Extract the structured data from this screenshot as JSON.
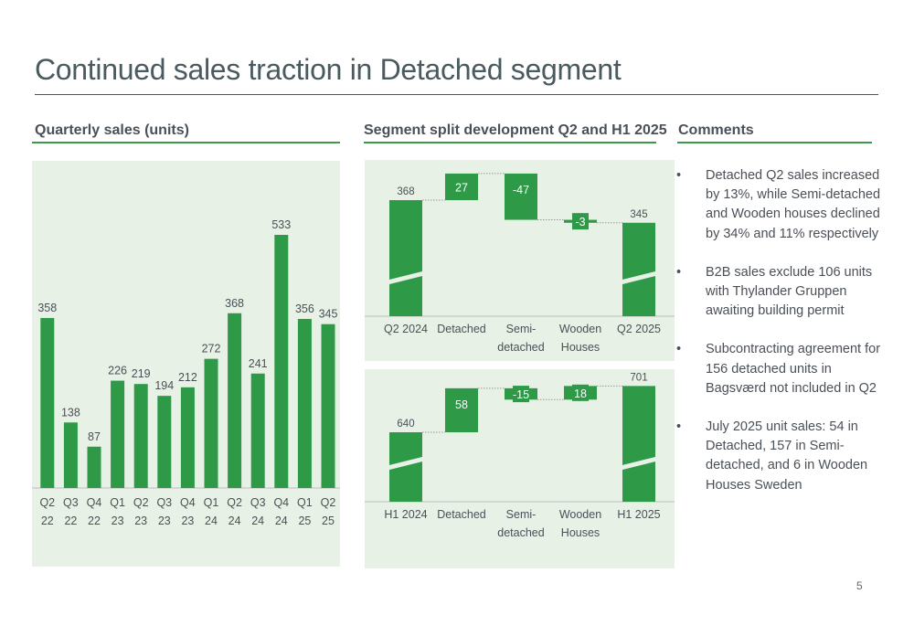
{
  "title": "Continued sales traction in Detached segment",
  "sections": {
    "quarterly": "Quarterly sales (units)",
    "segment": "Segment split development Q2 and H1 2025",
    "comments": "Comments"
  },
  "colors": {
    "bar": "#2e9a48",
    "panel": "#e8f1e6",
    "rule": "#3a9a48"
  },
  "chart_data": [
    {
      "type": "bar",
      "title": "Quarterly sales (units)",
      "categories": [
        [
          "Q2",
          "22"
        ],
        [
          "Q3",
          "22"
        ],
        [
          "Q4",
          "22"
        ],
        [
          "Q1",
          "23"
        ],
        [
          "Q2",
          "23"
        ],
        [
          "Q3",
          "23"
        ],
        [
          "Q4",
          "23"
        ],
        [
          "Q1",
          "24"
        ],
        [
          "Q2",
          "24"
        ],
        [
          "Q3",
          "24"
        ],
        [
          "Q4",
          "24"
        ],
        [
          "Q1",
          "25"
        ],
        [
          "Q2",
          "25"
        ]
      ],
      "values": [
        358,
        138,
        87,
        226,
        219,
        194,
        212,
        272,
        368,
        241,
        533,
        356,
        345
      ],
      "ylim": [
        0,
        560
      ]
    },
    {
      "type": "waterfall",
      "categories": [
        [
          "Q2 2024"
        ],
        [
          "Detached"
        ],
        [
          "Semi-",
          "detached"
        ],
        [
          "Wooden",
          "Houses"
        ],
        [
          "Q2 2025"
        ]
      ],
      "values": [
        368,
        27,
        -47,
        -3,
        345
      ],
      "labels": [
        "368",
        "27",
        "-47",
        "-3",
        "345"
      ],
      "kinds": [
        "total",
        "delta",
        "delta",
        "delta",
        "total"
      ],
      "axis_broken": true
    },
    {
      "type": "waterfall",
      "categories": [
        [
          "H1 2024"
        ],
        [
          "Detached"
        ],
        [
          "Semi-",
          "detached"
        ],
        [
          "Wooden",
          "Houses"
        ],
        [
          "H1 2025"
        ]
      ],
      "values": [
        640,
        58,
        -15,
        18,
        701
      ],
      "labels": [
        "640",
        "58",
        "-15",
        "18",
        "701"
      ],
      "kinds": [
        "total",
        "delta",
        "delta",
        "delta",
        "total"
      ],
      "axis_broken": true
    }
  ],
  "comments": [
    "Detached Q2 sales increased by 13%, while Semi-detached and Wooden houses declined by 34% and 11% respectively",
    "B2B sales exclude 106 units with Thylander Gruppen awaiting building permit",
    "Subcontracting agreement for 156 detached units in Bagsværd not included in Q2",
    "July 2025 unit sales: 54 in Detached, 157 in Semi-detached, and 6 in Wooden Houses Sweden"
  ],
  "bullet_char": "•",
  "page_number": "5"
}
